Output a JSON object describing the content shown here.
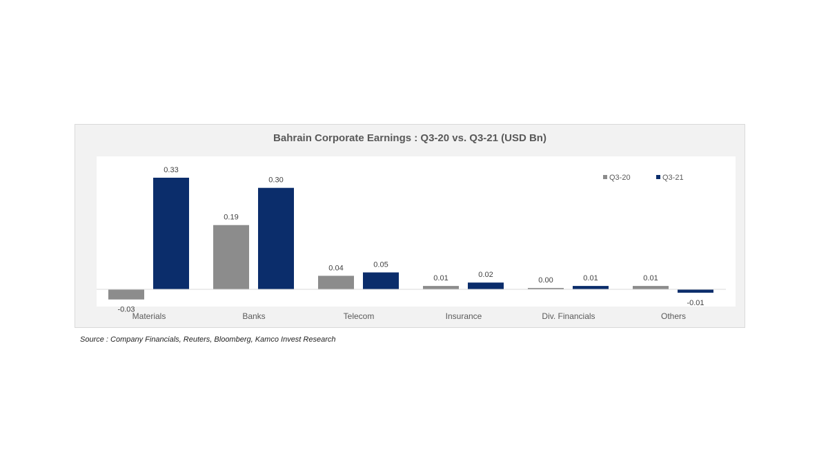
{
  "chart_data": {
    "type": "bar",
    "title": "Bahrain Corporate Earnings : Q3-20 vs. Q3-21 (USD Bn)",
    "categories": [
      "Materials",
      "Banks",
      "Telecom",
      "Insurance",
      "Div. Financials",
      "Others"
    ],
    "series": [
      {
        "name": "Q3-20",
        "color": "#8c8c8c",
        "values": [
          -0.03,
          0.19,
          0.04,
          0.01,
          0.0,
          0.01
        ]
      },
      {
        "name": "Q3-21",
        "color": "#0b2d6b",
        "values": [
          0.33,
          0.3,
          0.05,
          0.02,
          0.01,
          -0.01
        ]
      }
    ],
    "xlabel": "",
    "ylabel": "",
    "ylim": [
      -0.05,
      0.35
    ],
    "grid": false,
    "legend": "top-right"
  },
  "source": "Source : Company Financials, Reuters, Bloomberg, Kamco Invest Research"
}
